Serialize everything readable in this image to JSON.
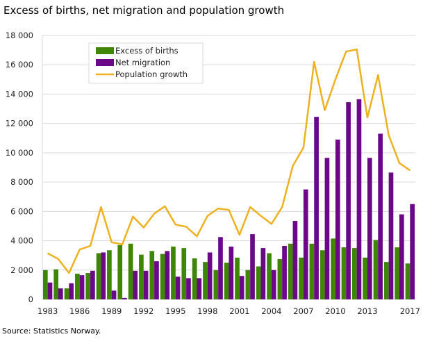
{
  "title": "Excess of births, net migration and population growth",
  "source": "Source: Statistics Norway.",
  "colors": {
    "births": "#3f8506",
    "migration": "#6a0888",
    "growth": "#eeb120",
    "grid": "#d9d9d9"
  },
  "chart_data": {
    "type": "bar",
    "title": "Excess of births, net migration and population growth",
    "xlabel": "",
    "ylabel": "",
    "ylim": [
      0,
      18000
    ],
    "yticks": [
      0,
      2000,
      4000,
      6000,
      8000,
      10000,
      12000,
      14000,
      16000,
      18000
    ],
    "ytick_labels": [
      "0",
      "2 000",
      "4 000",
      "6 000",
      "8 000",
      "10 000",
      "12 000",
      "14 000",
      "16 000",
      "18 000"
    ],
    "grid": true,
    "legend": "top-left",
    "categories": [
      "1983",
      "1984",
      "1985",
      "1986",
      "1987",
      "1988",
      "1989",
      "1990",
      "1991",
      "1992",
      "1993",
      "1994",
      "1995",
      "1996",
      "1997",
      "1998",
      "1999",
      "2000",
      "2001",
      "2002",
      "2003",
      "2004",
      "2005",
      "2006",
      "2007",
      "2008",
      "2009",
      "2010",
      "2011",
      "2012",
      "2013",
      "2014",
      "2015",
      "2016",
      "2017"
    ],
    "xtick_labels": [
      "1983",
      "1986",
      "1989",
      "1992",
      "1995",
      "1998",
      "2001",
      "2004",
      "2007",
      "2010",
      "2013",
      "2017"
    ],
    "series": [
      {
        "name": "Excess of births",
        "type": "bar",
        "values": [
          2000,
          2050,
          750,
          1750,
          1800,
          3150,
          3350,
          3700,
          3800,
          3050,
          3300,
          3100,
          3600,
          3500,
          2800,
          2550,
          2000,
          2500,
          2850,
          2000,
          2250,
          3150,
          2750,
          3800,
          2850,
          3800,
          3350,
          4150,
          3550,
          3500,
          2850,
          4050,
          2550,
          3550,
          2450
        ]
      },
      {
        "name": "Net migration",
        "type": "bar",
        "values": [
          1150,
          750,
          1100,
          1650,
          1950,
          3200,
          600,
          100,
          1950,
          1950,
          2600,
          3300,
          1550,
          1450,
          1450,
          3200,
          4250,
          3600,
          1600,
          4450,
          3500,
          2000,
          3650,
          5350,
          7500,
          12450,
          9650,
          10900,
          13450,
          13650,
          9650,
          11300,
          8650,
          5800,
          6500
        ]
      },
      {
        "name": "Population growth",
        "type": "line",
        "values": [
          3150,
          2750,
          1800,
          3400,
          3650,
          6300,
          3900,
          3750,
          5650,
          4900,
          5850,
          6350,
          5100,
          4950,
          4300,
          5700,
          6200,
          6100,
          4400,
          6300,
          5700,
          5150,
          6300,
          9100,
          10350,
          16200,
          12900,
          15000,
          16900,
          17050,
          12400,
          15300,
          11200,
          9300,
          8800
        ]
      }
    ]
  }
}
